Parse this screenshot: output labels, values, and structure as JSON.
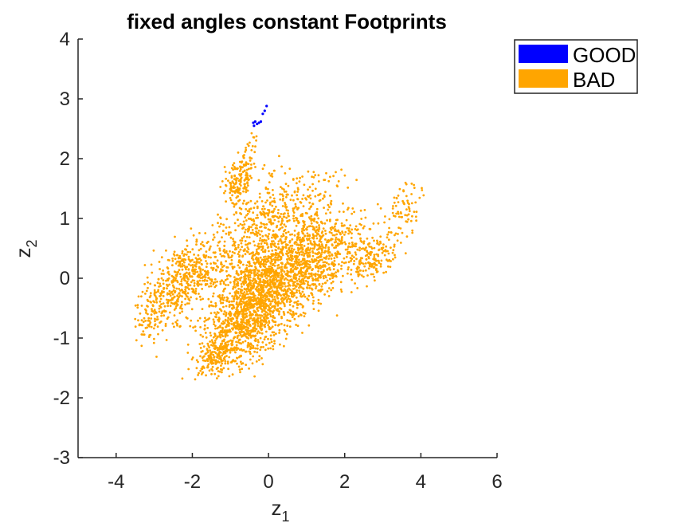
{
  "chart_data": {
    "type": "scatter",
    "title": "fixed angles constant Footprints",
    "xlabel": {
      "base": "z",
      "sub": "1"
    },
    "ylabel": {
      "base": "z",
      "sub": "2"
    },
    "xlim": [
      -5,
      6
    ],
    "ylim": [
      -3,
      4
    ],
    "xticks": [
      -4,
      -2,
      0,
      2,
      4,
      6
    ],
    "yticks": [
      -3,
      -2,
      -1,
      0,
      1,
      2,
      3,
      4
    ],
    "xtick_labels": [
      "-4",
      "-2",
      "0",
      "2",
      "4",
      "6"
    ],
    "ytick_labels": [
      "-3",
      "-2",
      "-1",
      "0",
      "1",
      "2",
      "3",
      "4"
    ],
    "grid": false,
    "legend_placement": "outside-top-right",
    "series": [
      {
        "name": "GOOD",
        "color": "#0000ff",
        "points": [
          [
            -0.4,
            2.6
          ],
          [
            -0.35,
            2.62
          ],
          [
            -0.3,
            2.58
          ],
          [
            -0.25,
            2.6
          ],
          [
            -0.2,
            2.62
          ],
          [
            -0.15,
            2.75
          ],
          [
            -0.1,
            2.8
          ],
          [
            -0.05,
            2.88
          ],
          [
            -0.38,
            2.55
          ]
        ]
      },
      {
        "name": "BAD",
        "color": "#ffa500",
        "clusters": [
          {
            "cx": 0.0,
            "cy": -0.1,
            "sx": 0.8,
            "sy": 0.45,
            "n": 1300
          },
          {
            "cx": -2.2,
            "cy": 0.0,
            "sx": 0.55,
            "sy": 0.3,
            "n": 500
          },
          {
            "cx": 1.2,
            "cy": 0.3,
            "sx": 0.7,
            "sy": 0.35,
            "n": 600
          },
          {
            "cx": -0.6,
            "cy": -0.7,
            "sx": 0.45,
            "sy": 0.4,
            "n": 600
          },
          {
            "cx": -1.4,
            "cy": -1.25,
            "sx": 0.25,
            "sy": 0.15,
            "n": 160
          },
          {
            "cx": -0.8,
            "cy": 1.6,
            "sx": 0.2,
            "sy": 0.2,
            "n": 150
          },
          {
            "cx": -0.2,
            "cy": 0.9,
            "sx": 0.5,
            "sy": 0.35,
            "n": 300
          },
          {
            "cx": 2.8,
            "cy": 0.35,
            "sx": 0.35,
            "sy": 0.15,
            "n": 150
          },
          {
            "cx": 3.6,
            "cy": 1.2,
            "sx": 0.25,
            "sy": 0.2,
            "n": 70
          },
          {
            "cx": -3.0,
            "cy": -0.6,
            "sx": 0.3,
            "sy": 0.25,
            "n": 90
          },
          {
            "cx": 0.9,
            "cy": 1.2,
            "sx": 0.5,
            "sy": 0.35,
            "n": 120
          },
          {
            "cx": -0.5,
            "cy": 2.1,
            "sx": 0.15,
            "sy": 0.2,
            "n": 30
          }
        ]
      }
    ]
  }
}
